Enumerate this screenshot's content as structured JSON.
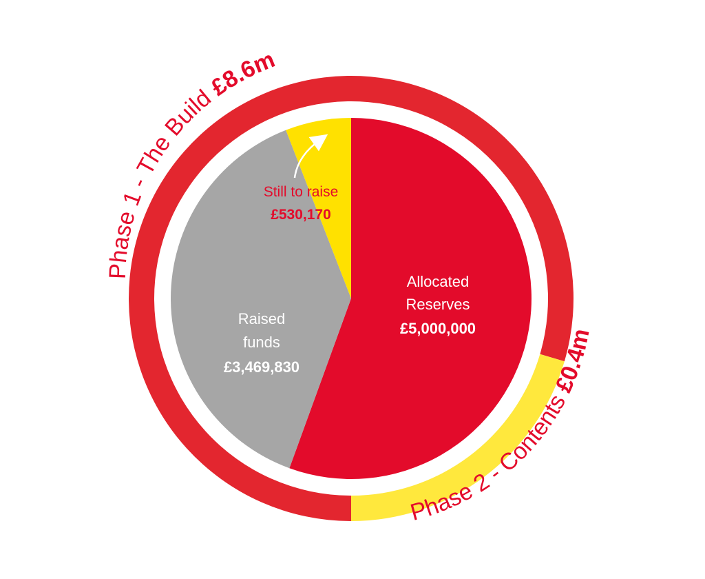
{
  "chart_data": [
    {
      "type": "pie",
      "slices": [
        {
          "label": "Allocated Reserves",
          "value": 5000000,
          "value_text": "£5,000,000",
          "color": "#e30b2b"
        },
        {
          "label": "Raised funds",
          "value": 3469830,
          "value_text": "£3,469,830",
          "color": "#a6a6a6"
        },
        {
          "label": "Still to raise",
          "value": 530170,
          "value_text": "£530,170",
          "color": "#ffe100"
        }
      ]
    },
    {
      "type": "pie",
      "ring": [
        {
          "label": "Phase 1 - The Build",
          "amount_text": "£8.6m",
          "value": 8.6,
          "color": "#e3262f"
        },
        {
          "label": "Phase 2 - Contents",
          "amount_text": "£0.4m",
          "value": 0.4,
          "color": "#ffe83d"
        }
      ]
    }
  ],
  "colors": {
    "label_red": "#e30b2b",
    "label_white": "#ffffff",
    "arrow": "#ffffff"
  },
  "icons": {
    "arrow": "curved-arrow-icon"
  }
}
